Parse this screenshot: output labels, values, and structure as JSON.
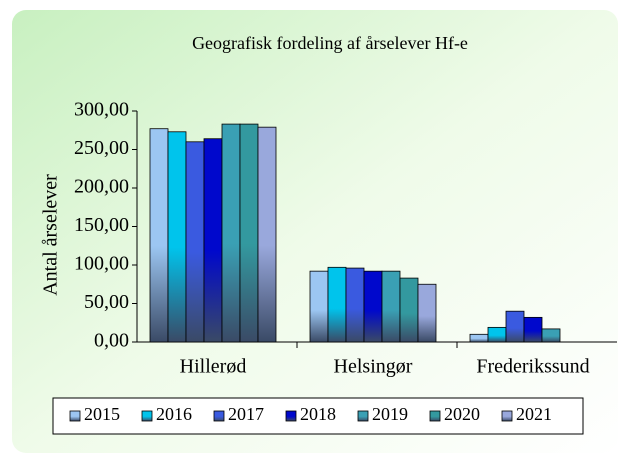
{
  "chart_data": {
    "type": "bar",
    "title": "Geografisk fordeling af årselever Hf-e",
    "y_label": "Antal årselever",
    "categories": [
      "Hillerød",
      "Helsingør",
      "Frederikssund"
    ],
    "series": [
      {
        "name": "2015",
        "color": "#9cc6f2",
        "values": [
          277,
          92,
          10
        ]
      },
      {
        "name": "2016",
        "color": "#00c4ec",
        "values": [
          273,
          97,
          19
        ]
      },
      {
        "name": "2017",
        "color": "#3a5ae0",
        "values": [
          260,
          96,
          40
        ]
      },
      {
        "name": "2018",
        "color": "#0008cc",
        "values": [
          264,
          92,
          32
        ]
      },
      {
        "name": "2019",
        "color": "#3aa0b4",
        "values": [
          283,
          92,
          17
        ]
      },
      {
        "name": "2020",
        "color": "#33999f",
        "values": [
          283,
          83,
          null
        ]
      },
      {
        "name": "2021",
        "color": "#99a8dc",
        "values": [
          279,
          75,
          null
        ]
      }
    ],
    "ylim": [
      0,
      300
    ],
    "yticks": [
      {
        "value": 0,
        "label": "0,00"
      },
      {
        "value": 50,
        "label": "50,00"
      },
      {
        "value": 100,
        "label": "100,00"
      },
      {
        "value": 150,
        "label": "150,00"
      },
      {
        "value": 200,
        "label": "200,00"
      },
      {
        "value": 250,
        "label": "250,00"
      },
      {
        "value": 300,
        "label": "300,00"
      }
    ],
    "legend": "bottom"
  }
}
